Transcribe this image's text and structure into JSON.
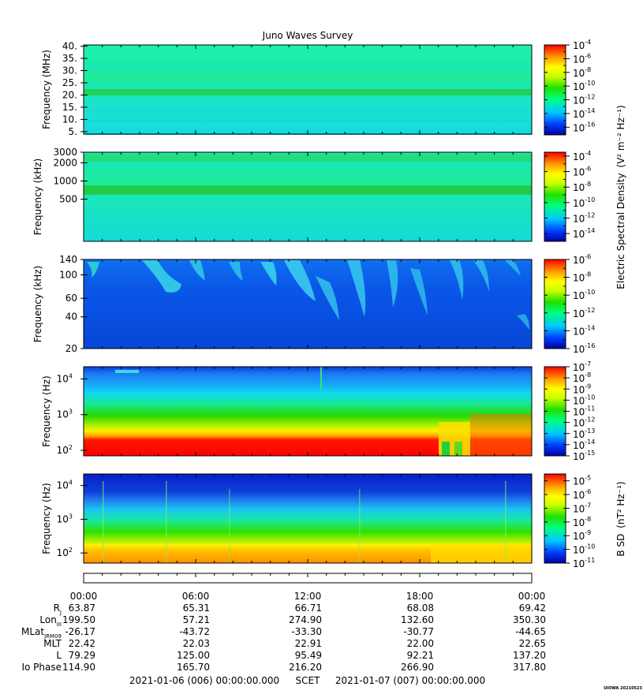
{
  "chart_data": {
    "type": "heatmap",
    "title": "Juno Waves Survey",
    "footer": {
      "start": "2021-01-06 (006) 00:00:00.000",
      "scet": "SCET",
      "end": "2021-01-07 (007) 00:00:00.000",
      "credit": "UIOWA 20210523"
    },
    "time_ticks": [
      "00:00",
      "06:00",
      "12:00",
      "18:00",
      "00:00"
    ],
    "ephemeris": [
      {
        "label": "R",
        "sub": "J",
        "values": [
          "63.87",
          "65.31",
          "66.71",
          "68.08",
          "69.42"
        ]
      },
      {
        "label": "Lon",
        "sub": "III",
        "values": [
          "199.50",
          "57.21",
          "274.90",
          "132.60",
          "350.30"
        ]
      },
      {
        "label": "MLat",
        "sub": "JRM09",
        "values": [
          "-26.17",
          "-43.72",
          "-33.30",
          "-30.77",
          "-44.65"
        ]
      },
      {
        "label": "MLT",
        "sub": "",
        "values": [
          "22.42",
          "22.03",
          "22.91",
          "22.00",
          "22.65"
        ]
      },
      {
        "label": "L",
        "sub": "",
        "values": [
          "79.29",
          "125.00",
          "95.49",
          "92.21",
          "137.20"
        ]
      },
      {
        "label": "Io Phase",
        "sub": "",
        "values": [
          "114.90",
          "165.70",
          "216.20",
          "266.90",
          "317.80"
        ]
      }
    ],
    "side_labels": {
      "electric": "Electric Spectral Density",
      "electric_units": "(V² m⁻² Hz⁻¹)",
      "magnetic": "B SD",
      "magnetic_units": "(nT² Hz⁻¹)"
    },
    "panels": [
      {
        "ylabel": "Frequency (MHz)",
        "yscale": "linear",
        "ylim": [
          4,
          40.5
        ],
        "yticks": [
          {
            "v": 5,
            "label": "5."
          },
          {
            "v": 10,
            "label": "10."
          },
          {
            "v": 15,
            "label": "15."
          },
          {
            "v": 20,
            "label": "20."
          },
          {
            "v": 25,
            "label": "25."
          },
          {
            "v": 30,
            "label": "30."
          },
          {
            "v": 35,
            "label": "35."
          },
          {
            "v": 40,
            "label": "40."
          }
        ],
        "colorbar": {
          "min_exp": -17,
          "max_exp": -4,
          "ticks": [
            -4,
            -6,
            -8,
            -10,
            -12,
            -14,
            -16
          ]
        }
      },
      {
        "ylabel": "Frequency (kHz)",
        "yscale": "log",
        "ylim": [
          100,
          3000
        ],
        "yticks": [
          {
            "v": 500,
            "label": "500"
          },
          {
            "v": 1000,
            "label": "1000"
          },
          {
            "v": 2000,
            "label": "2000"
          },
          {
            "v": 3000,
            "label": "3000"
          }
        ],
        "colorbar": {
          "min_exp": -15,
          "max_exp": -3.5,
          "ticks": [
            -4,
            -6,
            -8,
            -10,
            -12,
            -14
          ]
        }
      },
      {
        "ylabel": "Frequency (kHz)",
        "yscale": "log",
        "ylim": [
          20,
          140
        ],
        "yticks": [
          {
            "v": 20,
            "label": "20"
          },
          {
            "v": 40,
            "label": "40"
          },
          {
            "v": 60,
            "label": "60"
          },
          {
            "v": 100,
            "label": "100"
          },
          {
            "v": 140,
            "label": "140"
          }
        ],
        "colorbar": {
          "min_exp": -16,
          "max_exp": -6,
          "ticks": [
            -6,
            -8,
            -10,
            -12,
            -14,
            -16
          ]
        }
      },
      {
        "ylabel": "Frequency (Hz)",
        "yscale": "log",
        "ylim": [
          70,
          22000
        ],
        "yticks": [
          {
            "v": 100,
            "label": "10",
            "exp": "2"
          },
          {
            "v": 1000,
            "label": "10",
            "exp": "3"
          },
          {
            "v": 10000,
            "label": "10",
            "exp": "4"
          }
        ],
        "colorbar": {
          "min_exp": -15,
          "max_exp": -7,
          "ticks": [
            -7,
            -8,
            -9,
            -10,
            -11,
            -12,
            -13,
            -14,
            -15
          ]
        }
      },
      {
        "ylabel": "Frequency (Hz)",
        "yscale": "log",
        "ylim": [
          50,
          22000
        ],
        "yticks": [
          {
            "v": 100,
            "label": "10",
            "exp": "2"
          },
          {
            "v": 1000,
            "label": "10",
            "exp": "3"
          },
          {
            "v": 10000,
            "label": "10",
            "exp": "4"
          }
        ],
        "colorbar": {
          "min_exp": -11,
          "max_exp": -4.5,
          "ticks": [
            -5,
            -6,
            -7,
            -8,
            -9,
            -10,
            -11
          ]
        }
      }
    ]
  }
}
